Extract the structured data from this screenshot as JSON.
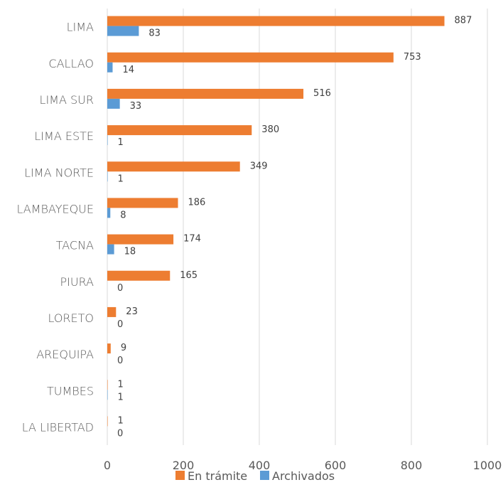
{
  "chart_data": {
    "type": "bar",
    "orientation": "horizontal",
    "categories": [
      "LIMA",
      "CALLAO",
      "LIMA SUR",
      "LIMA ESTE",
      "LIMA NORTE",
      "LAMBAYEQUE",
      "TACNA",
      "PIURA",
      "LORETO",
      "AREQUIPA",
      "TUMBES",
      "LA LIBERTAD"
    ],
    "series": [
      {
        "name": "En trámite",
        "color": "#ed7d31",
        "values": [
          887,
          753,
          516,
          380,
          349,
          186,
          174,
          165,
          23,
          9,
          1,
          1
        ]
      },
      {
        "name": "Archivados",
        "color": "#5b9bd5",
        "values": [
          83,
          14,
          33,
          1,
          1,
          8,
          18,
          0,
          0,
          0,
          1,
          0
        ]
      }
    ],
    "xlim": [
      0,
      1000
    ],
    "xticks": [
      "0",
      "200",
      "400",
      "600",
      "800",
      "1000"
    ],
    "grid": "vertical",
    "legend_position": "bottom"
  }
}
